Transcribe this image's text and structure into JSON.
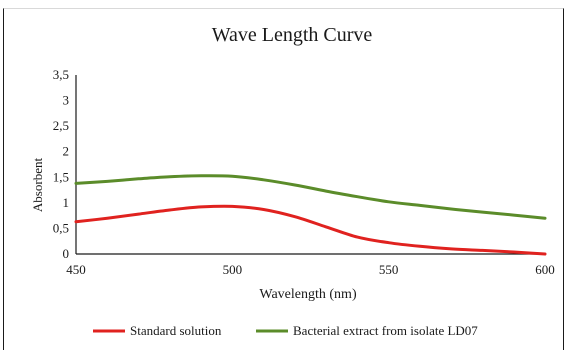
{
  "chart_data": {
    "type": "line",
    "title": "Wave Length Curve",
    "xlabel": "Wavelength (nm)",
    "ylabel": "Absorbent",
    "xlim": [
      450,
      600
    ],
    "ylim": [
      0,
      3.5
    ],
    "x_ticks": [
      "450",
      "500",
      "550",
      "600"
    ],
    "y_ticks": [
      "0",
      "0,5",
      "1",
      "1,5",
      "2",
      "2,5",
      "3",
      "3,5"
    ],
    "grid": false,
    "legend_position": "bottom",
    "series": [
      {
        "name": "Standard solution",
        "color": "#e0221f",
        "x": [
          450,
          460,
          470,
          480,
          490,
          500,
          510,
          520,
          530,
          540,
          550,
          560,
          570,
          580,
          590,
          600
        ],
        "y": [
          0.63,
          0.7,
          0.78,
          0.86,
          0.92,
          0.93,
          0.87,
          0.73,
          0.53,
          0.33,
          0.22,
          0.15,
          0.1,
          0.07,
          0.04,
          0.0
        ]
      },
      {
        "name": "Bacterial extract from isolate LD07",
        "color": "#5b8c2a",
        "x": [
          450,
          460,
          470,
          480,
          490,
          500,
          510,
          520,
          530,
          540,
          550,
          560,
          570,
          580,
          590,
          600
        ],
        "y": [
          1.38,
          1.42,
          1.47,
          1.51,
          1.53,
          1.52,
          1.45,
          1.35,
          1.23,
          1.12,
          1.02,
          0.95,
          0.88,
          0.82,
          0.76,
          0.7
        ]
      }
    ]
  }
}
